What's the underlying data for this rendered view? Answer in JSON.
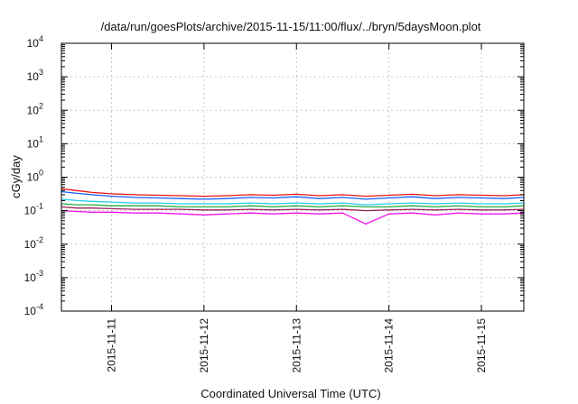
{
  "chart_data": {
    "type": "line",
    "title": "/data/run/goesPlots/archive/2015-11-15/11:00/flux/../bryn/5daysMoon.plot",
    "xlabel": "Coordinated Universal Time (UTC)",
    "ylabel": "cGy/day",
    "yscale": "log",
    "ylim": [
      0.0001,
      10000
    ],
    "yticks": [
      {
        "base": "10",
        "exp": "-4",
        "value": 0.0001
      },
      {
        "base": "10",
        "exp": "-3",
        "value": 0.001
      },
      {
        "base": "10",
        "exp": "-2",
        "value": 0.01
      },
      {
        "base": "10",
        "exp": "-1",
        "value": 0.1
      },
      {
        "base": "10",
        "exp": "0",
        "value": 1
      },
      {
        "base": "10",
        "exp": "1",
        "value": 10
      },
      {
        "base": "10",
        "exp": "2",
        "value": 100
      },
      {
        "base": "10",
        "exp": "3",
        "value": 1000
      },
      {
        "base": "10",
        "exp": "4",
        "value": 10000
      }
    ],
    "xlim": [
      "2015-11-10 11:00",
      "2015-11-15 11:00"
    ],
    "xticks": [
      {
        "label": "2015-11-11",
        "value": "2015-11-11 00:00"
      },
      {
        "label": "2015-11-12",
        "value": "2015-11-12 00:00"
      },
      {
        "label": "2015-11-13",
        "value": "2015-11-13 00:00"
      },
      {
        "label": "2015-11-14",
        "value": "2015-11-14 00:00"
      },
      {
        "label": "2015-11-15",
        "value": "2015-11-15 00:00"
      }
    ],
    "grid": true,
    "series": [
      {
        "color": "#ee1111",
        "x": [
          "2015-11-10 11:00",
          "2015-11-10 15:00",
          "2015-11-10 19:00",
          "2015-11-11 00:00",
          "2015-11-11 06:00",
          "2015-11-11 12:00",
          "2015-11-11 18:00",
          "2015-11-12 00:00",
          "2015-11-12 06:00",
          "2015-11-12 12:00",
          "2015-11-12 18:00",
          "2015-11-13 00:00",
          "2015-11-13 06:00",
          "2015-11-13 12:00",
          "2015-11-13 18:00",
          "2015-11-14 00:00",
          "2015-11-14 06:00",
          "2015-11-14 12:00",
          "2015-11-14 18:00",
          "2015-11-15 00:00",
          "2015-11-15 06:00",
          "2015-11-15 11:00"
        ],
        "values": [
          0.45,
          0.4,
          0.35,
          0.32,
          0.3,
          0.29,
          0.28,
          0.27,
          0.28,
          0.3,
          0.29,
          0.31,
          0.28,
          0.3,
          0.27,
          0.29,
          0.31,
          0.28,
          0.3,
          0.29,
          0.28,
          0.3
        ]
      },
      {
        "color": "#1a5cff",
        "x": [
          "2015-11-10 11:00",
          "2015-11-10 15:00",
          "2015-11-10 19:00",
          "2015-11-11 00:00",
          "2015-11-11 06:00",
          "2015-11-11 12:00",
          "2015-11-11 18:00",
          "2015-11-12 00:00",
          "2015-11-12 06:00",
          "2015-11-12 12:00",
          "2015-11-12 18:00",
          "2015-11-13 00:00",
          "2015-11-13 06:00",
          "2015-11-13 12:00",
          "2015-11-13 18:00",
          "2015-11-14 00:00",
          "2015-11-14 06:00",
          "2015-11-14 12:00",
          "2015-11-14 18:00",
          "2015-11-15 00:00",
          "2015-11-15 06:00",
          "2015-11-15 11:00"
        ],
        "values": [
          0.37,
          0.33,
          0.3,
          0.27,
          0.25,
          0.24,
          0.23,
          0.22,
          0.23,
          0.25,
          0.24,
          0.26,
          0.23,
          0.25,
          0.22,
          0.24,
          0.26,
          0.23,
          0.25,
          0.24,
          0.23,
          0.25
        ]
      },
      {
        "color": "#22ccee",
        "x": [
          "2015-11-10 11:00",
          "2015-11-10 15:00",
          "2015-11-10 19:00",
          "2015-11-11 00:00",
          "2015-11-11 06:00",
          "2015-11-11 12:00",
          "2015-11-11 18:00",
          "2015-11-12 00:00",
          "2015-11-12 06:00",
          "2015-11-12 12:00",
          "2015-11-12 18:00",
          "2015-11-13 00:00",
          "2015-11-13 06:00",
          "2015-11-13 12:00",
          "2015-11-13 18:00",
          "2015-11-14 00:00",
          "2015-11-14 06:00",
          "2015-11-14 12:00",
          "2015-11-14 18:00",
          "2015-11-15 00:00",
          "2015-11-15 06:00",
          "2015-11-15 11:00"
        ],
        "values": [
          0.22,
          0.2,
          0.19,
          0.18,
          0.17,
          0.17,
          0.16,
          0.16,
          0.16,
          0.17,
          0.16,
          0.17,
          0.16,
          0.17,
          0.15,
          0.16,
          0.17,
          0.16,
          0.17,
          0.16,
          0.16,
          0.17
        ]
      },
      {
        "color": "#22aa44",
        "x": [
          "2015-11-10 11:00",
          "2015-11-10 15:00",
          "2015-11-10 19:00",
          "2015-11-11 00:00",
          "2015-11-11 06:00",
          "2015-11-11 12:00",
          "2015-11-11 18:00",
          "2015-11-12 00:00",
          "2015-11-12 06:00",
          "2015-11-12 12:00",
          "2015-11-12 18:00",
          "2015-11-13 00:00",
          "2015-11-13 06:00",
          "2015-11-13 12:00",
          "2015-11-13 18:00",
          "2015-11-14 00:00",
          "2015-11-14 06:00",
          "2015-11-14 12:00",
          "2015-11-14 18:00",
          "2015-11-15 00:00",
          "2015-11-15 06:00",
          "2015-11-15 11:00"
        ],
        "values": [
          0.16,
          0.15,
          0.15,
          0.14,
          0.14,
          0.14,
          0.13,
          0.13,
          0.13,
          0.14,
          0.13,
          0.14,
          0.13,
          0.14,
          0.13,
          0.13,
          0.14,
          0.13,
          0.14,
          0.13,
          0.13,
          0.14
        ]
      },
      {
        "color": "#992255",
        "x": [
          "2015-11-10 11:00",
          "2015-11-10 15:00",
          "2015-11-10 19:00",
          "2015-11-11 00:00",
          "2015-11-11 06:00",
          "2015-11-11 12:00",
          "2015-11-11 18:00",
          "2015-11-12 00:00",
          "2015-11-12 06:00",
          "2015-11-12 12:00",
          "2015-11-12 18:00",
          "2015-11-13 00:00",
          "2015-11-13 06:00",
          "2015-11-13 12:00",
          "2015-11-13 18:00",
          "2015-11-14 00:00",
          "2015-11-14 06:00",
          "2015-11-14 12:00",
          "2015-11-14 18:00",
          "2015-11-15 00:00",
          "2015-11-15 06:00",
          "2015-11-15 11:00"
        ],
        "values": [
          0.13,
          0.12,
          0.12,
          0.115,
          0.11,
          0.11,
          0.11,
          0.105,
          0.105,
          0.11,
          0.105,
          0.11,
          0.105,
          0.11,
          0.1,
          0.105,
          0.11,
          0.105,
          0.11,
          0.105,
          0.105,
          0.11
        ]
      },
      {
        "color": "#ee11ee",
        "x": [
          "2015-11-10 11:00",
          "2015-11-10 15:00",
          "2015-11-10 19:00",
          "2015-11-11 00:00",
          "2015-11-11 06:00",
          "2015-11-11 12:00",
          "2015-11-11 18:00",
          "2015-11-12 00:00",
          "2015-11-12 06:00",
          "2015-11-12 12:00",
          "2015-11-12 18:00",
          "2015-11-13 00:00",
          "2015-11-13 06:00",
          "2015-11-13 12:00",
          "2015-11-13 18:00",
          "2015-11-14 00:00",
          "2015-11-14 06:00",
          "2015-11-14 12:00",
          "2015-11-14 18:00",
          "2015-11-15 00:00",
          "2015-11-15 06:00",
          "2015-11-15 11:00"
        ],
        "values": [
          0.1,
          0.095,
          0.09,
          0.09,
          0.085,
          0.085,
          0.08,
          0.075,
          0.08,
          0.085,
          0.08,
          0.085,
          0.08,
          0.085,
          0.04,
          0.08,
          0.085,
          0.075,
          0.085,
          0.08,
          0.08,
          0.085
        ]
      }
    ]
  }
}
